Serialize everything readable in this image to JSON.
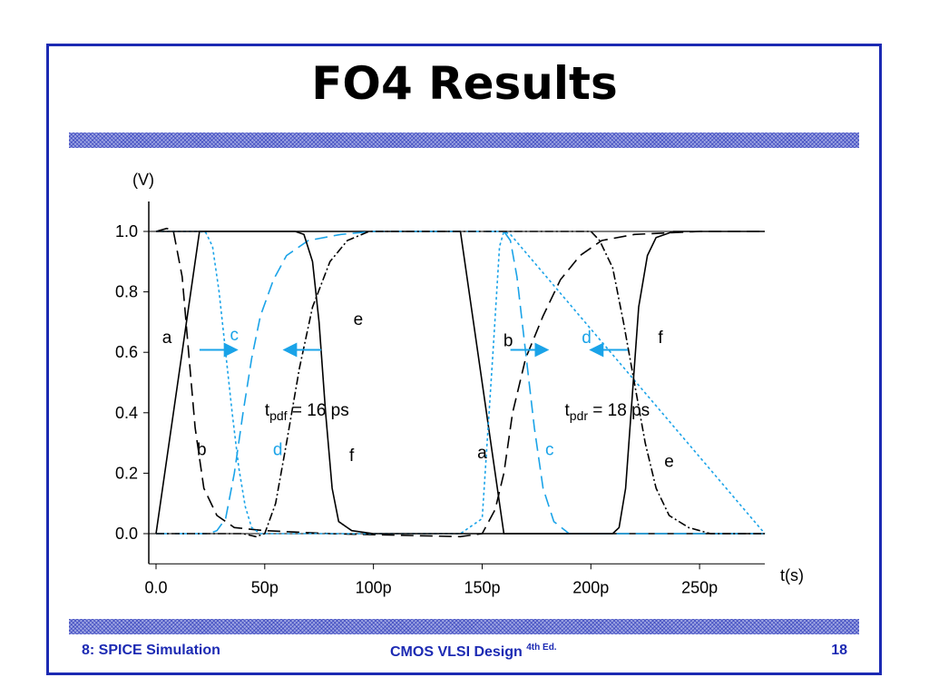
{
  "slide": {
    "title": "FO4 Results",
    "footer_left": "8: SPICE Simulation",
    "footer_center": "CMOS VLSI Design",
    "footer_center_sup": "4th Ed.",
    "footer_right": "18",
    "border_color": "#1c2ab3"
  },
  "chart_data": {
    "type": "line",
    "ylabel": "(V)",
    "xlabel": "t(s)",
    "xlim": [
      0,
      280
    ],
    "ylim": [
      -0.1,
      1.1
    ],
    "x_unit": "ps",
    "x_ticks": [
      {
        "v": 0,
        "label": "0.0"
      },
      {
        "v": 50,
        "label": "50p"
      },
      {
        "v": 100,
        "label": "100p"
      },
      {
        "v": 150,
        "label": "150p"
      },
      {
        "v": 200,
        "label": "200p"
      },
      {
        "v": 250,
        "label": "250p"
      }
    ],
    "y_ticks": [
      {
        "v": 0.0,
        "label": "0.0"
      },
      {
        "v": 0.2,
        "label": "0.2"
      },
      {
        "v": 0.4,
        "label": "0.4"
      },
      {
        "v": 0.6,
        "label": "0.6"
      },
      {
        "v": 0.8,
        "label": "0.8"
      },
      {
        "v": 1.0,
        "label": "1.0"
      }
    ],
    "grid": false,
    "series": [
      {
        "name": "a",
        "color": "#000000",
        "style": "solid",
        "points": [
          [
            0,
            0
          ],
          [
            20,
            1
          ],
          [
            140,
            1
          ],
          [
            160,
            0
          ],
          [
            280,
            0
          ]
        ]
      },
      {
        "name": "b",
        "color": "#000000",
        "style": "longdash",
        "points": [
          [
            0,
            1
          ],
          [
            5,
            1.01
          ],
          [
            8,
            1
          ],
          [
            12,
            0.85
          ],
          [
            15,
            0.6
          ],
          [
            18,
            0.35
          ],
          [
            22,
            0.15
          ],
          [
            28,
            0.06
          ],
          [
            36,
            0.02
          ],
          [
            50,
            0.01
          ],
          [
            80,
            0
          ],
          [
            140,
            -0.01
          ],
          [
            150,
            0
          ],
          [
            156,
            0.08
          ],
          [
            160,
            0.2
          ],
          [
            164,
            0.4
          ],
          [
            170,
            0.58
          ],
          [
            178,
            0.72
          ],
          [
            186,
            0.84
          ],
          [
            195,
            0.92
          ],
          [
            205,
            0.97
          ],
          [
            220,
            0.99
          ],
          [
            250,
            1
          ],
          [
            280,
            1
          ]
        ]
      },
      {
        "name": "c",
        "color": "#1aa3e8",
        "style": "dotted",
        "points": [
          [
            0,
            1
          ],
          [
            20,
            1
          ],
          [
            23,
            0.995
          ],
          [
            26,
            0.95
          ],
          [
            29,
            0.8
          ],
          [
            32,
            0.6
          ],
          [
            35,
            0.4
          ],
          [
            38,
            0.22
          ],
          [
            41,
            0.09
          ],
          [
            44,
            0.02
          ],
          [
            48,
            0
          ],
          [
            140,
            0
          ],
          [
            150,
            0.05
          ],
          [
            155,
            0.6
          ],
          [
            158,
            0.95
          ],
          [
            160,
            1.0
          ],
          [
            163,
            0.99
          ],
          [
            280,
            0
          ]
        ]
      },
      {
        "name": "d",
        "color": "#1aa3e8",
        "style": "longdash",
        "points": [
          [
            0,
            0
          ],
          [
            24,
            0
          ],
          [
            28,
            0.01
          ],
          [
            32,
            0.05
          ],
          [
            36,
            0.2
          ],
          [
            40,
            0.4
          ],
          [
            44,
            0.58
          ],
          [
            48,
            0.72
          ],
          [
            54,
            0.84
          ],
          [
            60,
            0.92
          ],
          [
            70,
            0.97
          ],
          [
            85,
            0.99
          ],
          [
            100,
            1
          ],
          [
            160,
            1
          ],
          [
            163,
            0.97
          ],
          [
            166,
            0.85
          ],
          [
            170,
            0.6
          ],
          [
            174,
            0.35
          ],
          [
            178,
            0.15
          ],
          [
            183,
            0.04
          ],
          [
            190,
            0
          ],
          [
            280,
            0
          ]
        ]
      },
      {
        "name": "e",
        "color": "#000000",
        "style": "dashdot",
        "points": [
          [
            0,
            0
          ],
          [
            40,
            0
          ],
          [
            46,
            -0.01
          ],
          [
            50,
            0
          ],
          [
            55,
            0.1
          ],
          [
            60,
            0.3
          ],
          [
            66,
            0.55
          ],
          [
            72,
            0.75
          ],
          [
            80,
            0.9
          ],
          [
            88,
            0.97
          ],
          [
            98,
            1
          ],
          [
            200,
            1
          ],
          [
            204,
            0.97
          ],
          [
            210,
            0.88
          ],
          [
            215,
            0.7
          ],
          [
            220,
            0.5
          ],
          [
            225,
            0.3
          ],
          [
            230,
            0.15
          ],
          [
            236,
            0.06
          ],
          [
            245,
            0.02
          ],
          [
            255,
            0
          ],
          [
            280,
            0
          ]
        ]
      },
      {
        "name": "f",
        "color": "#000000",
        "style": "solid",
        "points": [
          [
            0,
            1
          ],
          [
            64,
            1
          ],
          [
            68,
            0.99
          ],
          [
            72,
            0.9
          ],
          [
            75,
            0.7
          ],
          [
            78,
            0.4
          ],
          [
            81,
            0.15
          ],
          [
            84,
            0.04
          ],
          [
            90,
            0.01
          ],
          [
            100,
            0
          ],
          [
            210,
            0
          ],
          [
            213,
            0.02
          ],
          [
            216,
            0.15
          ],
          [
            219,
            0.45
          ],
          [
            222,
            0.75
          ],
          [
            226,
            0.92
          ],
          [
            230,
            0.98
          ],
          [
            238,
            1
          ],
          [
            280,
            1
          ]
        ]
      }
    ],
    "curve_labels": [
      {
        "text": "a",
        "x": 5,
        "y": 0.63,
        "color": "#000000"
      },
      {
        "text": "b",
        "x": 21,
        "y": 0.26,
        "color": "#000000"
      },
      {
        "text": "c",
        "x": 36,
        "y": 0.64,
        "color": "#1aa3e8"
      },
      {
        "text": "d",
        "x": 56,
        "y": 0.26,
        "color": "#1aa3e8"
      },
      {
        "text": "e",
        "x": 93,
        "y": 0.69,
        "color": "#000000"
      },
      {
        "text": "f",
        "x": 90,
        "y": 0.24,
        "color": "#000000"
      },
      {
        "text": "b",
        "x": 162,
        "y": 0.62,
        "color": "#000000"
      },
      {
        "text": "a",
        "x": 150,
        "y": 0.25,
        "color": "#000000"
      },
      {
        "text": "c",
        "x": 181,
        "y": 0.26,
        "color": "#1aa3e8"
      },
      {
        "text": "d",
        "x": 198,
        "y": 0.63,
        "color": "#1aa3e8"
      },
      {
        "text": "f",
        "x": 232,
        "y": 0.63,
        "color": "#000000"
      },
      {
        "text": "e",
        "x": 236,
        "y": 0.22,
        "color": "#000000"
      }
    ],
    "delay_annotations": [
      {
        "name": "tpdf",
        "main": "t",
        "sub": "pdf",
        "rest": " = 16 ps",
        "x": 50,
        "y": 0.42,
        "arrow_start": 20,
        "arrow_end": 37,
        "arrow2_start": 76,
        "arrow2_end": 59,
        "arrow_y": 0.5,
        "color": "#1aa3e8"
      },
      {
        "name": "tpdr",
        "main": "t",
        "sub": "pdr",
        "rest": " = 18 ps",
        "x": 188,
        "y": 0.42,
        "arrow_start": 163,
        "arrow_end": 180,
        "arrow2_start": 217,
        "arrow2_end": 200,
        "arrow_y": 0.5,
        "color": "#1aa3e8"
      }
    ]
  }
}
